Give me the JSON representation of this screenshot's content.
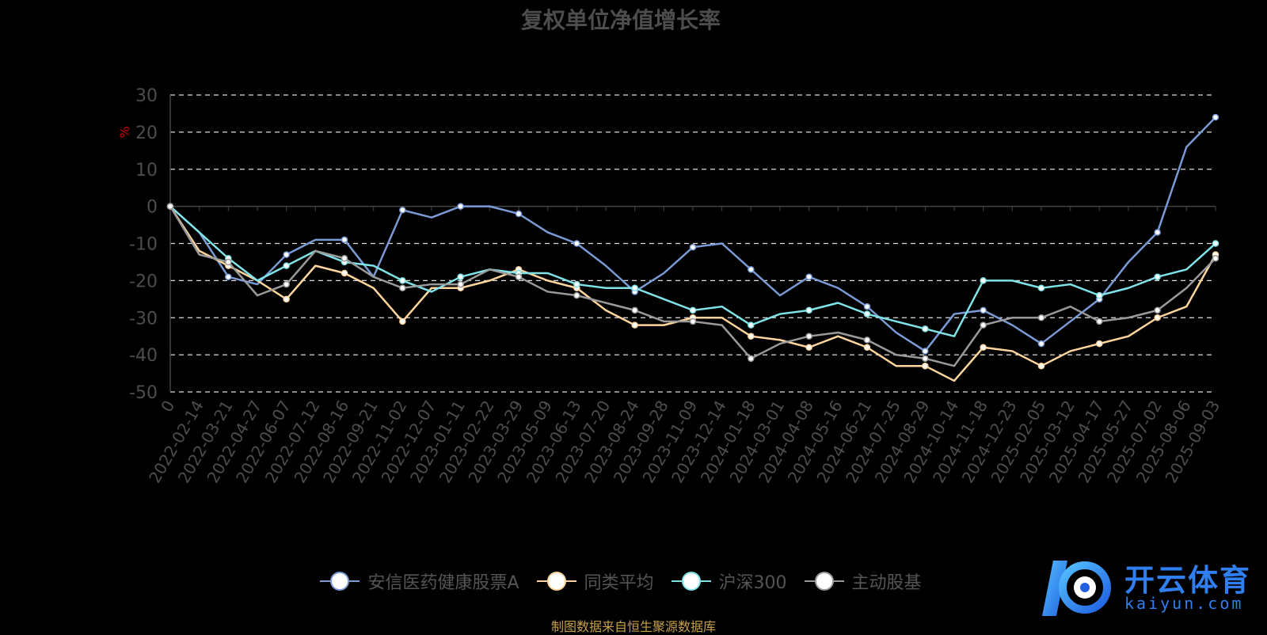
{
  "chart_data": {
    "type": "line",
    "title": "复权单位净值增长率",
    "ylabel": "%",
    "ylim": [
      -50,
      30
    ],
    "yticks": [
      30,
      20,
      10,
      0,
      -10,
      -20,
      -30,
      -40,
      -50
    ],
    "grid": true,
    "legend_position": "bottom-center",
    "x_tick_labels": [
      "0",
      "2022-02-14",
      "2022-03-21",
      "2022-04-27",
      "2022-06-07",
      "2022-07-12",
      "2022-08-16",
      "2022-09-21",
      "2022-11-02",
      "2022-12-07",
      "2023-01-11",
      "2023-02-22",
      "2023-03-29",
      "2023-05-09",
      "2023-06-13",
      "2023-07-20",
      "2023-08-24",
      "2023-09-28",
      "2023-11-09",
      "2023-12-14",
      "2024-01-18",
      "2024-03-01",
      "2024-04-08",
      "2024-05-16",
      "2024-06-21",
      "2024-07-25",
      "2024-08-29",
      "2024-10-14",
      "2024-11-18",
      "2024-12-23",
      "2025-02-05",
      "2025-03-12",
      "2025-04-17",
      "2025-05-27",
      "2025-07-02",
      "2025-08-06",
      "2025-09-03"
    ],
    "series": [
      {
        "name": "安信医药健康股票A",
        "color": "#7b9bd6",
        "values": [
          0,
          -7,
          -19,
          -21,
          -13,
          -9,
          -9,
          -19,
          -1,
          -3,
          0,
          0,
          -2,
          -7,
          -10,
          -16,
          -23,
          -18,
          -11,
          -10,
          -17,
          -24,
          -19,
          -22,
          -27,
          -34,
          -39,
          -29,
          -28,
          -32,
          -37,
          -31,
          -25,
          -15,
          -7,
          16,
          24
        ]
      },
      {
        "name": "同类平均",
        "color": "#ffd59e",
        "values": [
          0,
          -12,
          -16,
          -20,
          -25,
          -16,
          -18,
          -22,
          -31,
          -22,
          -22,
          -20,
          -17,
          -20,
          -22,
          -28,
          -32,
          -32,
          -30,
          -30,
          -35,
          -36,
          -38,
          -35,
          -38,
          -43,
          -43,
          -47,
          -38,
          -39,
          -43,
          -39,
          -37,
          -35,
          -30,
          -27,
          -13
        ]
      },
      {
        "name": "沪深300",
        "color": "#7fe3e8",
        "values": [
          0,
          -7,
          -14,
          -20,
          -16,
          -12,
          -15,
          -16,
          -20,
          -23,
          -19,
          -17,
          -18,
          -18,
          -21,
          -22,
          -22,
          -25,
          -28,
          -27,
          -32,
          -29,
          -28,
          -26,
          -29,
          -31,
          -33,
          -35,
          -20,
          -20,
          -22,
          -21,
          -24,
          -22,
          -19,
          -17,
          -10
        ]
      },
      {
        "name": "主动股基",
        "color": "#9a9a9a",
        "values": [
          0,
          -13,
          -15,
          -24,
          -21,
          -12,
          -14,
          -19,
          -22,
          -21,
          -21,
          -17,
          -19,
          -23,
          -24,
          -26,
          -28,
          -31,
          -31,
          -32,
          -41,
          -37,
          -35,
          -34,
          -36,
          -40,
          -41,
          -43,
          -32,
          -30,
          -30,
          -27,
          -31,
          -30,
          -28,
          -22,
          -14
        ]
      }
    ]
  },
  "footer": {
    "source": "制图数据来自恒生聚源数据库"
  },
  "logo": {
    "brand": "开云体育",
    "domain": "kaiyun.com"
  }
}
